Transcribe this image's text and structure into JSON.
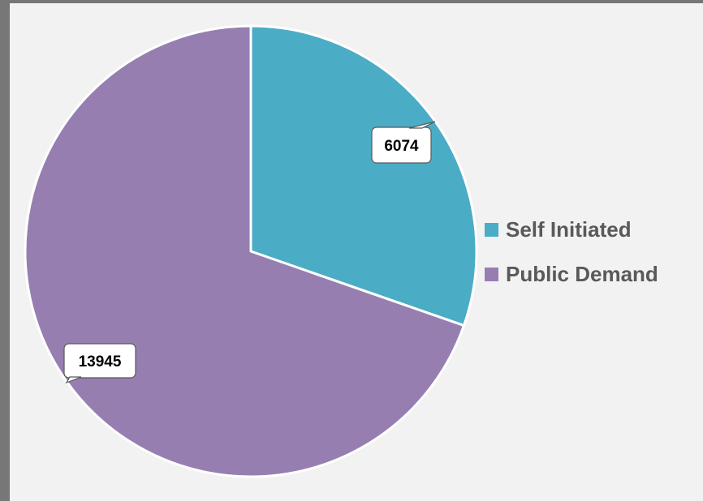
{
  "chart_data": {
    "type": "pie",
    "categories": [
      "Self Initiated",
      "Public Demand"
    ],
    "values": [
      6074,
      13945
    ],
    "colors": [
      "#4bacc6",
      "#967fb0"
    ],
    "data_labels": [
      "6074",
      "13945"
    ],
    "legend": {
      "placement": "right"
    },
    "title": ""
  }
}
